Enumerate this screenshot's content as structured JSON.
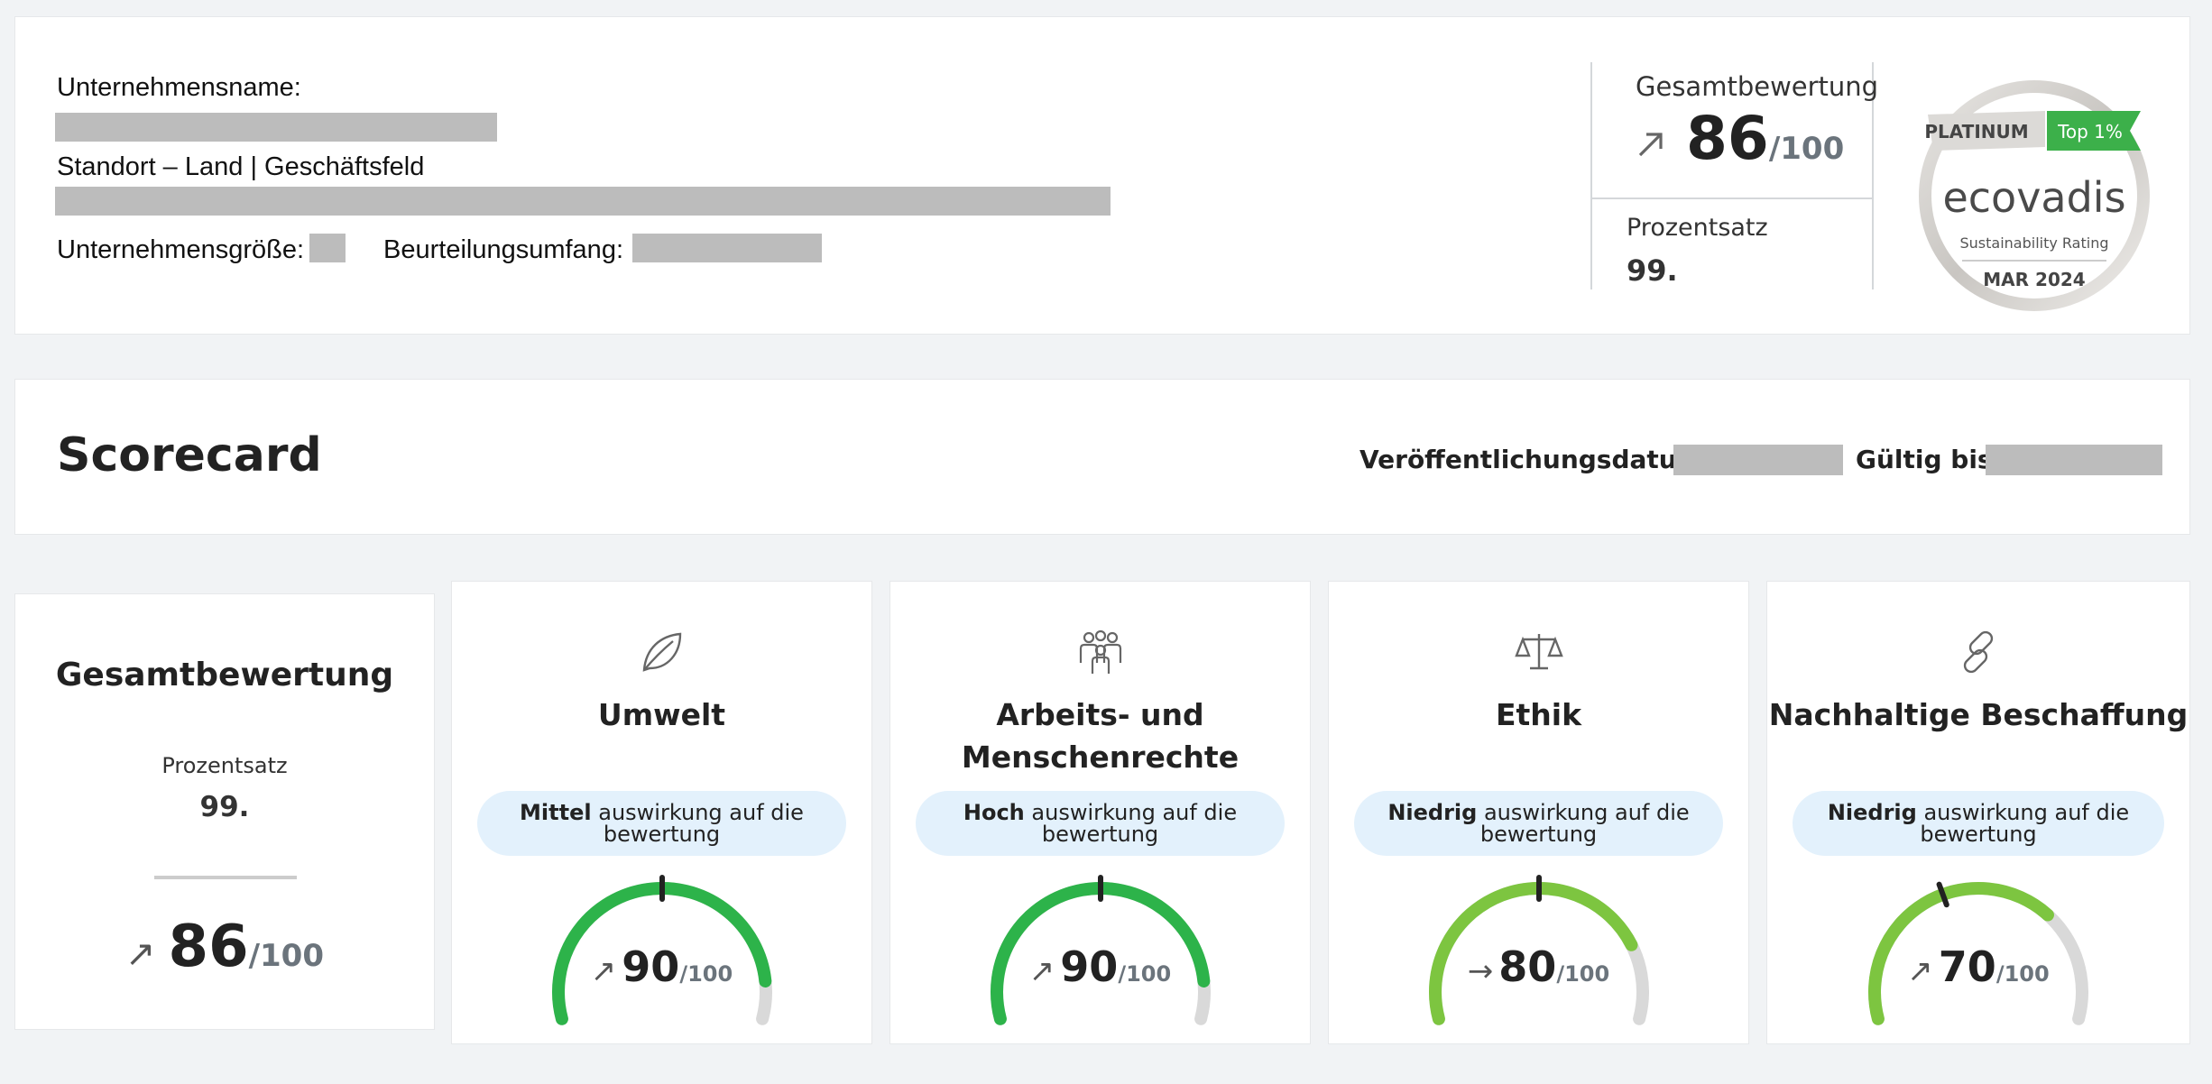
{
  "company": {
    "name_label": "Unternehmensname:",
    "location_label": "Standort – Land | Geschäftsfeld",
    "size_label": "Unternehmensgröße:",
    "scope_label": "Beurteilungsumfang:"
  },
  "summary": {
    "title": "Gesamtbewertung",
    "score": "86",
    "max": "/100",
    "percentile_label": "Prozentsatz",
    "percentile_value": "99."
  },
  "medal": {
    "level": "PLATINUM",
    "top": "Top 1%",
    "brand": "ecovadis",
    "subtitle": "Sustainability Rating",
    "date": "MAR 2024"
  },
  "scorecard": {
    "title": "Scorecard",
    "published_label": "Veröffentlichungsdatum:",
    "valid_label": "Gültig bis:"
  },
  "overall": {
    "title": "Gesamtbewertung",
    "percentile_label": "Prozentsatz",
    "percentile_value": "99.",
    "score": "86",
    "max": "/100"
  },
  "themes": [
    {
      "title": "Umwelt",
      "icon": "leaf-icon",
      "impact": "Mittel",
      "impact_suffix": "auswirkung auf die bewertung",
      "score": "90",
      "max": "/100",
      "trend": "↗",
      "gauge_level": 0.9,
      "color": "#2db34a"
    },
    {
      "title": "Arbeits- und Menschenrechte",
      "icon": "people-icon",
      "impact": "Hoch",
      "impact_suffix": "auswirkung auf die bewertung",
      "score": "90",
      "max": "/100",
      "trend": "↗",
      "gauge_level": 0.9,
      "color": "#2db34a"
    },
    {
      "title": "Ethik",
      "icon": "scales-icon",
      "impact": "Niedrig",
      "impact_suffix": "auswirkung auf die bewertung",
      "score": "80",
      "max": "/100",
      "trend": "→",
      "gauge_level": 0.8,
      "color": "#7dc540"
    },
    {
      "title": "Nachhaltige Beschaffung",
      "icon": "chain-icon",
      "impact": "Niedrig",
      "impact_suffix": "auswirkung auf die bewertung",
      "score": "70",
      "max": "/100",
      "trend": "↗",
      "gauge_level": 0.7,
      "color": "#7dc540"
    }
  ],
  "colors": {
    "accent_green": "#2db34a",
    "light_green": "#7dc540",
    "pill_bg": "#e3f1fc",
    "redacted": "#bcbcbc"
  }
}
